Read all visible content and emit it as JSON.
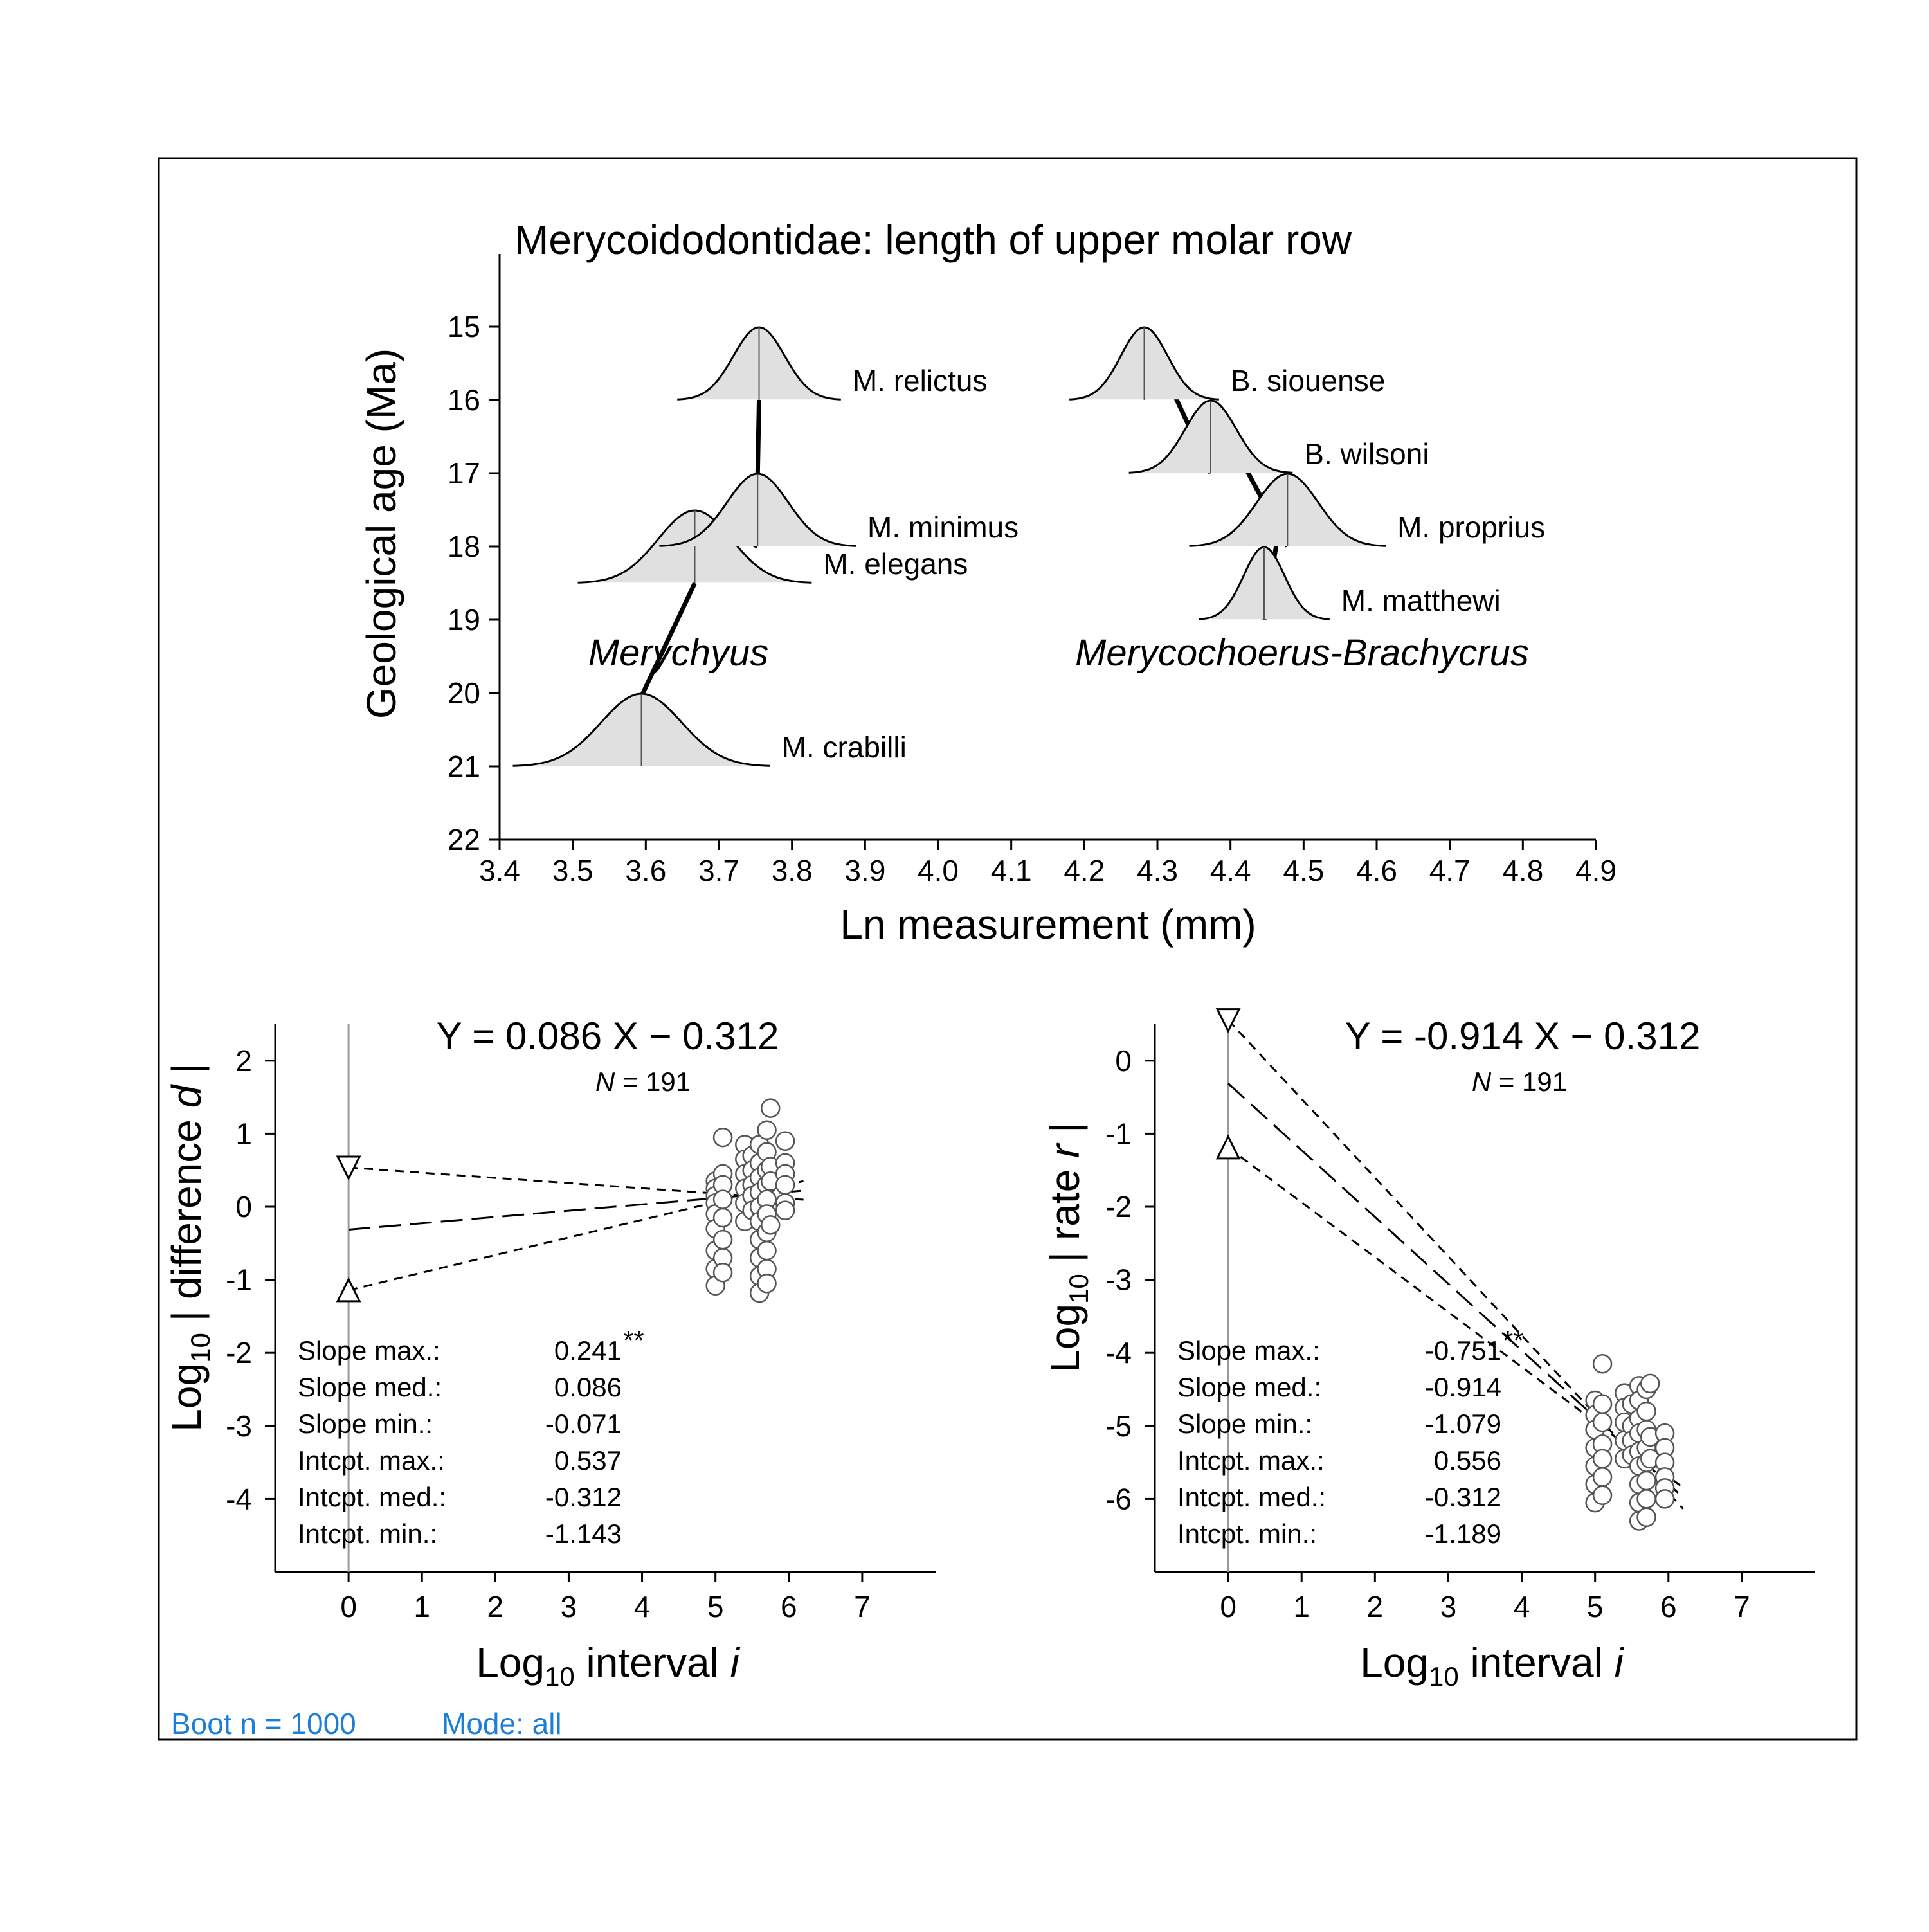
{
  "footer": {
    "boot": "Boot n = 1000",
    "mode": "Mode:  all"
  },
  "chart_data": [
    {
      "type": "line",
      "title": "Merycoidodontidae: length of upper molar row",
      "xlabel": "Ln measurement (mm)",
      "ylabel": "Geological age (Ma)",
      "xlim": [
        3.4,
        4.9
      ],
      "ylim": [
        22,
        14.2
      ],
      "y_reversed": true,
      "xticks": [
        "3.4",
        "3.5",
        "3.6",
        "3.7",
        "3.8",
        "3.9",
        "4.0",
        "4.1",
        "4.2",
        "4.3",
        "4.4",
        "4.5",
        "4.6",
        "4.7",
        "4.8",
        "4.9"
      ],
      "yticks": [
        "15",
        "16",
        "17",
        "18",
        "19",
        "20",
        "21",
        "22"
      ],
      "groups": [
        "Merychyus",
        "Merycochoerus-Brachycrus"
      ],
      "species": [
        {
          "name": "M. crabilli",
          "age": 21,
          "mean": 3.594,
          "sd": 0.055
        },
        {
          "name": "M. elegans",
          "age": 18.5,
          "mean": 3.667,
          "sd": 0.05
        },
        {
          "name": "M. minimus",
          "age": 18,
          "mean": 3.753,
          "sd": 0.042
        },
        {
          "name": "M. relictus",
          "age": 16,
          "mean": 3.755,
          "sd": 0.035
        },
        {
          "name": "B. siouense",
          "age": 16,
          "mean": 4.282,
          "sd": 0.032
        },
        {
          "name": "B. wilsoni",
          "age": 17,
          "mean": 4.373,
          "sd": 0.035
        },
        {
          "name": "M. proprius",
          "age": 18,
          "mean": 4.478,
          "sd": 0.042
        },
        {
          "name": "M. matthewi",
          "age": 19,
          "mean": 4.446,
          "sd": 0.028
        }
      ],
      "lineages": [
        [
          "M. crabilli",
          "M. elegans"
        ],
        [
          "M. elegans",
          "M. minimus"
        ],
        [
          "M. minimus",
          "M. relictus"
        ],
        [
          "B. siouense",
          "B. wilsoni"
        ],
        [
          "B. wilsoni",
          "M. proprius"
        ],
        [
          "M. proprius",
          "M. matthewi"
        ]
      ]
    },
    {
      "type": "scatter",
      "equation": "Y = 0.086 X −  0.312",
      "n_label": "N",
      "n_value": "= 191",
      "xlabel_pre": "Log",
      "xlabel_sub": "10",
      "xlabel_post": " interval ",
      "xlabel_var": "i",
      "ylabel_pre": "Log",
      "ylabel_sub": "10",
      "ylabel_post": " | difference ",
      "ylabel_var": "d",
      "ylabel_end": " |",
      "xlim": [
        -1,
        8
      ],
      "ylim": [
        -5,
        2.5
      ],
      "xticks": [
        "0",
        "1",
        "2",
        "3",
        "4",
        "5",
        "6",
        "7"
      ],
      "yticks": [
        "2",
        "1",
        "0",
        "-1",
        "-2",
        "-3",
        "-4"
      ],
      "line_max": {
        "intercept": 0.537,
        "slope": -0.071
      },
      "line_med": {
        "intercept": -0.312,
        "slope": 0.086
      },
      "line_min": {
        "intercept": -1.143,
        "slope": 0.241
      },
      "stats": [
        {
          "label": "Slope max.:",
          "value": "0.241",
          "sig": "**"
        },
        {
          "label": "Slope med.:",
          "value": "0.086",
          "sig": ""
        },
        {
          "label": "Slope min.:",
          "value": "-0.071",
          "sig": ""
        },
        {
          "label": "Intcpt. max.:",
          "value": "0.537",
          "sig": ""
        },
        {
          "label": "Intcpt. med.:",
          "value": "-0.312",
          "sig": ""
        },
        {
          "label": "Intcpt. min.:",
          "value": "-1.143",
          "sig": ""
        }
      ],
      "points": [
        [
          5.0,
          0.35
        ],
        [
          5.0,
          0.25
        ],
        [
          5.0,
          0.15
        ],
        [
          5.0,
          0.05
        ],
        [
          5.0,
          -0.1
        ],
        [
          5.0,
          -0.3
        ],
        [
          5.0,
          -0.6
        ],
        [
          5.0,
          -0.85
        ],
        [
          5.0,
          -1.08
        ],
        [
          5.1,
          0.95
        ],
        [
          5.1,
          0.45
        ],
        [
          5.1,
          0.3
        ],
        [
          5.1,
          0.1
        ],
        [
          5.1,
          -0.15
        ],
        [
          5.1,
          -0.45
        ],
        [
          5.1,
          -0.7
        ],
        [
          5.1,
          -0.9
        ],
        [
          5.4,
          0.85
        ],
        [
          5.4,
          0.65
        ],
        [
          5.4,
          0.45
        ],
        [
          5.4,
          0.25
        ],
        [
          5.4,
          0.05
        ],
        [
          5.4,
          -0.2
        ],
        [
          5.5,
          0.7
        ],
        [
          5.5,
          0.5
        ],
        [
          5.5,
          0.3
        ],
        [
          5.5,
          0.15
        ],
        [
          5.5,
          -0.05
        ],
        [
          5.6,
          0.85
        ],
        [
          5.6,
          0.6
        ],
        [
          5.6,
          0.4
        ],
        [
          5.6,
          0.2
        ],
        [
          5.6,
          0.0
        ],
        [
          5.6,
          -0.2
        ],
        [
          5.6,
          -0.45
        ],
        [
          5.6,
          -0.7
        ],
        [
          5.6,
          -0.95
        ],
        [
          5.6,
          -1.18
        ],
        [
          5.7,
          1.05
        ],
        [
          5.7,
          0.75
        ],
        [
          5.7,
          0.5
        ],
        [
          5.7,
          0.3
        ],
        [
          5.7,
          0.1
        ],
        [
          5.7,
          -0.1
        ],
        [
          5.7,
          -0.35
        ],
        [
          5.7,
          -0.6
        ],
        [
          5.7,
          -0.85
        ],
        [
          5.7,
          -1.05
        ],
        [
          5.75,
          1.35
        ],
        [
          5.75,
          0.55
        ],
        [
          5.75,
          0.35
        ],
        [
          5.75,
          -0.25
        ],
        [
          5.95,
          0.9
        ],
        [
          5.95,
          0.6
        ],
        [
          5.95,
          0.45
        ],
        [
          5.95,
          0.3
        ],
        [
          5.95,
          0.05
        ],
        [
          5.95,
          -0.05
        ]
      ]
    },
    {
      "type": "scatter",
      "equation": "Y = -0.914 X −  0.312",
      "n_label": "N",
      "n_value": "= 191",
      "xlabel_pre": "Log",
      "xlabel_sub": "10",
      "xlabel_post": " interval ",
      "xlabel_var": "i",
      "ylabel_pre": "Log",
      "ylabel_sub": "10",
      "ylabel_post": " | rate ",
      "ylabel_var": "r",
      "ylabel_end": " |",
      "xlim": [
        -1,
        8
      ],
      "ylim": [
        -7,
        0.5
      ],
      "xticks": [
        "0",
        "1",
        "2",
        "3",
        "4",
        "5",
        "6",
        "7"
      ],
      "yticks": [
        "0",
        "-1",
        "-2",
        "-3",
        "-4",
        "-5",
        "-6"
      ],
      "line_max": {
        "intercept": 0.556,
        "slope": -1.079
      },
      "line_med": {
        "intercept": -0.312,
        "slope": -0.914
      },
      "line_min": {
        "intercept": -1.189,
        "slope": -0.751
      },
      "stats": [
        {
          "label": "Slope max.:",
          "value": "-0.751",
          "sig": "**"
        },
        {
          "label": "Slope med.:",
          "value": "-0.914",
          "sig": ""
        },
        {
          "label": "Slope min.:",
          "value": "-1.079",
          "sig": ""
        },
        {
          "label": "Intcpt. max.:",
          "value": "0.556",
          "sig": ""
        },
        {
          "label": "Intcpt. med.:",
          "value": "-0.312",
          "sig": ""
        },
        {
          "label": "Intcpt. min.:",
          "value": "-1.189",
          "sig": ""
        }
      ],
      "points": [
        [
          5.0,
          -4.65
        ],
        [
          5.0,
          -4.85
        ],
        [
          5.0,
          -5.05
        ],
        [
          5.0,
          -5.3
        ],
        [
          5.0,
          -5.55
        ],
        [
          5.0,
          -5.8
        ],
        [
          5.0,
          -6.05
        ],
        [
          5.1,
          -4.15
        ],
        [
          5.1,
          -4.7
        ],
        [
          5.1,
          -4.95
        ],
        [
          5.1,
          -5.25
        ],
        [
          5.1,
          -5.45
        ],
        [
          5.1,
          -5.7
        ],
        [
          5.1,
          -5.95
        ],
        [
          5.4,
          -4.55
        ],
        [
          5.4,
          -4.75
        ],
        [
          5.4,
          -4.95
        ],
        [
          5.4,
          -5.2
        ],
        [
          5.4,
          -5.45
        ],
        [
          5.5,
          -4.7
        ],
        [
          5.5,
          -5.0
        ],
        [
          5.5,
          -5.2
        ],
        [
          5.5,
          -5.4
        ],
        [
          5.6,
          -4.45
        ],
        [
          5.6,
          -4.65
        ],
        [
          5.6,
          -4.9
        ],
        [
          5.6,
          -5.1
        ],
        [
          5.6,
          -5.35
        ],
        [
          5.6,
          -5.55
        ],
        [
          5.6,
          -5.8
        ],
        [
          5.6,
          -6.05
        ],
        [
          5.6,
          -6.3
        ],
        [
          5.7,
          -4.5
        ],
        [
          5.7,
          -4.8
        ],
        [
          5.7,
          -5.05
        ],
        [
          5.7,
          -5.3
        ],
        [
          5.7,
          -5.5
        ],
        [
          5.7,
          -5.75
        ],
        [
          5.7,
          -6.0
        ],
        [
          5.7,
          -6.25
        ],
        [
          5.75,
          -4.42
        ],
        [
          5.75,
          -5.15
        ],
        [
          5.75,
          -5.45
        ],
        [
          5.95,
          -5.1
        ],
        [
          5.95,
          -5.3
        ],
        [
          5.95,
          -5.5
        ],
        [
          5.95,
          -5.7
        ],
        [
          5.95,
          -5.85
        ],
        [
          5.95,
          -6.0
        ]
      ]
    }
  ]
}
